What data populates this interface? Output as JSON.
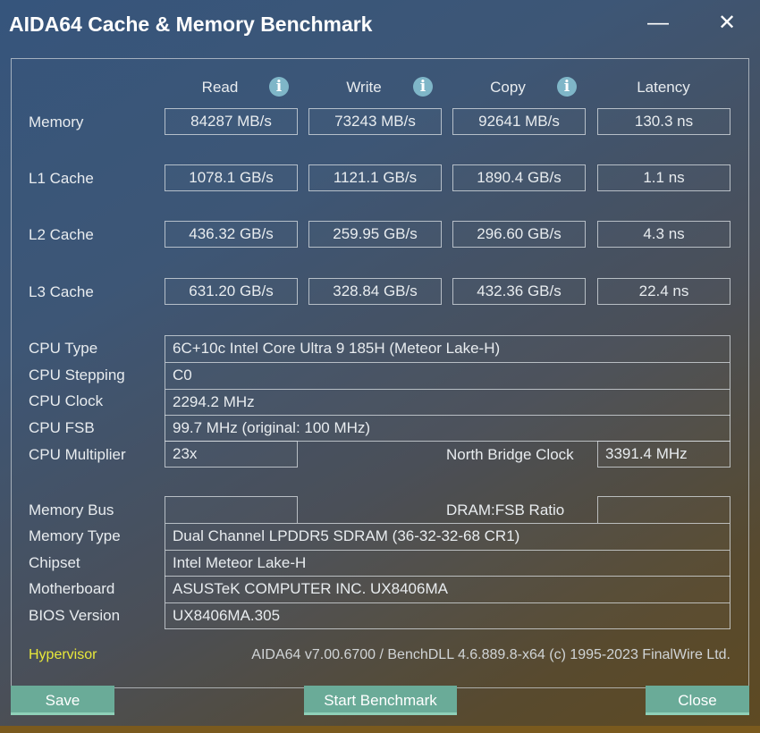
{
  "window": {
    "title": "AIDA64 Cache & Memory Benchmark",
    "minimize_icon": "minimize-icon",
    "close_icon": "close-icon"
  },
  "columns": [
    "Read",
    "Write",
    "Copy",
    "Latency"
  ],
  "rows": [
    {
      "label": "Memory",
      "values": [
        "84287 MB/s",
        "73243 MB/s",
        "92641 MB/s",
        "130.3 ns"
      ]
    },
    {
      "label": "L1 Cache",
      "values": [
        "1078.1 GB/s",
        "1121.1 GB/s",
        "1890.4 GB/s",
        "1.1 ns"
      ]
    },
    {
      "label": "L2 Cache",
      "values": [
        "436.32 GB/s",
        "259.95 GB/s",
        "296.60 GB/s",
        "4.3 ns"
      ]
    },
    {
      "label": "L3 Cache",
      "values": [
        "631.20 GB/s",
        "328.84 GB/s",
        "432.36 GB/s",
        "22.4 ns"
      ]
    }
  ],
  "cpu": {
    "type_label": "CPU Type",
    "type": "6C+10c Intel Core Ultra 9 185H  (Meteor Lake-H)",
    "stepping_label": "CPU Stepping",
    "stepping": "C0",
    "clock_label": "CPU Clock",
    "clock": "2294.2 MHz",
    "fsb_label": "CPU FSB",
    "fsb": "99.7 MHz  (original: 100 MHz)",
    "multiplier_label": "CPU Multiplier",
    "multiplier": "23x",
    "nb_clock_label": "North Bridge Clock",
    "nb_clock": "3391.4 MHz"
  },
  "memory": {
    "bus_label": "Memory Bus",
    "bus": "",
    "dram_ratio_label": "DRAM:FSB Ratio",
    "dram_ratio": "",
    "type_label": "Memory Type",
    "type": "Dual Channel LPDDR5 SDRAM  (36-32-32-68 CR1)",
    "chipset_label": "Chipset",
    "chipset": "Intel Meteor Lake-H",
    "motherboard_label": "Motherboard",
    "motherboard": "ASUSTeK COMPUTER INC. UX8406MA",
    "bios_label": "BIOS Version",
    "bios": "UX8406MA.305"
  },
  "footer": {
    "hypervisor": "Hypervisor",
    "version": "AIDA64 v7.00.6700 / BenchDLL 4.6.889.8-x64  (c) 1995-2023 FinalWire Ltd."
  },
  "buttons": {
    "save": "Save",
    "start": "Start Benchmark",
    "close": "Close"
  },
  "colors": {
    "button": "#6aab98",
    "info_icon": "#7fb6c8",
    "hypervisor": "#e8e83a"
  }
}
